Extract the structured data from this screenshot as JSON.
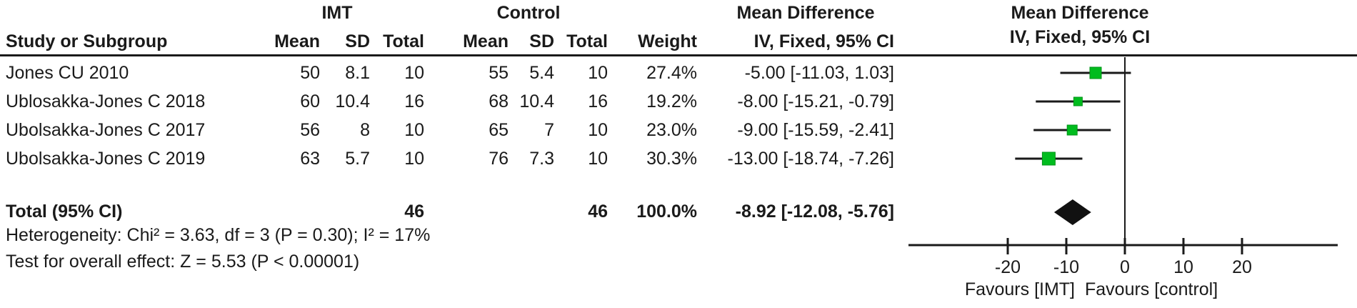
{
  "table": {
    "group_headers": {
      "group1": "IMT",
      "group2": "Control",
      "md_text_line1": "Mean Difference",
      "md_plot_line1": "Mean Difference"
    },
    "col_headers": {
      "study": "Study or Subgroup",
      "mean1": "Mean",
      "sd1": "SD",
      "total1": "Total",
      "mean2": "Mean",
      "sd2": "SD",
      "total2": "Total",
      "weight": "Weight",
      "md_text_line2": "IV, Fixed, 95% CI",
      "md_plot_line2": "IV, Fixed, 95% CI"
    },
    "rows": [
      {
        "study": "Jones CU 2010",
        "imt_mean": "50",
        "imt_sd": "8.1",
        "imt_total": "10",
        "ctl_mean": "55",
        "ctl_sd": "5.4",
        "ctl_total": "10",
        "weight": "27.4%",
        "md": "-5.00 [-11.03, 1.03]"
      },
      {
        "study": "Ublosakka-Jones C 2018",
        "imt_mean": "60",
        "imt_sd": "10.4",
        "imt_total": "16",
        "ctl_mean": "68",
        "ctl_sd": "10.4",
        "ctl_total": "16",
        "weight": "19.2%",
        "md": "-8.00 [-15.21, -0.79]"
      },
      {
        "study": "Ubolsakka-Jones C 2017",
        "imt_mean": "56",
        "imt_sd": "8",
        "imt_total": "10",
        "ctl_mean": "65",
        "ctl_sd": "7",
        "ctl_total": "10",
        "weight": "23.0%",
        "md": "-9.00 [-15.59, -2.41]"
      },
      {
        "study": "Ubolsakka-Jones C 2019",
        "imt_mean": "63",
        "imt_sd": "5.7",
        "imt_total": "10",
        "ctl_mean": "76",
        "ctl_sd": "7.3",
        "ctl_total": "10",
        "weight": "30.3%",
        "md": "-13.00 [-18.74, -7.26]"
      }
    ],
    "total_row": {
      "label": "Total (95% CI)",
      "imt_total": "46",
      "ctl_total": "46",
      "weight": "100.0%",
      "md": "-8.92 [-12.08, -5.76]"
    },
    "footer": {
      "heterogeneity": "Heterogeneity: Chi² = 3.63, df = 3 (P = 0.30); I² = 17%",
      "overall_effect": "Test for overall effect: Z = 5.53 (P < 0.00001)"
    }
  },
  "chart_data": {
    "type": "forest",
    "effect_measure": "Mean Difference",
    "model": "IV, Fixed, 95% CI",
    "x_ticks": [
      -20,
      -10,
      0,
      10,
      20
    ],
    "xlim": [
      -37,
      36
    ],
    "studies": [
      {
        "label": "Jones CU 2010",
        "md": -5.0,
        "ci_low": -11.03,
        "ci_high": 1.03,
        "weight_pct": 27.4
      },
      {
        "label": "Ublosakka-Jones C 2018",
        "md": -8.0,
        "ci_low": -15.21,
        "ci_high": -0.79,
        "weight_pct": 19.2
      },
      {
        "label": "Ubolsakka-Jones C 2017",
        "md": -9.0,
        "ci_low": -15.59,
        "ci_high": -2.41,
        "weight_pct": 23.0
      },
      {
        "label": "Ubolsakka-Jones C 2019",
        "md": -13.0,
        "ci_low": -18.74,
        "ci_high": -7.26,
        "weight_pct": 30.3
      }
    ],
    "total": {
      "label": "Total (95% CI)",
      "md": -8.92,
      "ci_low": -12.08,
      "ci_high": -5.76,
      "weight_pct": 100.0
    },
    "favours_left": "Favours [IMT]",
    "favours_right": "Favours [control]",
    "marker_color": "#00bc1e",
    "marker_border_color": "#009318",
    "diamond_color": "#111111",
    "line_color": "#1a1a1a"
  }
}
